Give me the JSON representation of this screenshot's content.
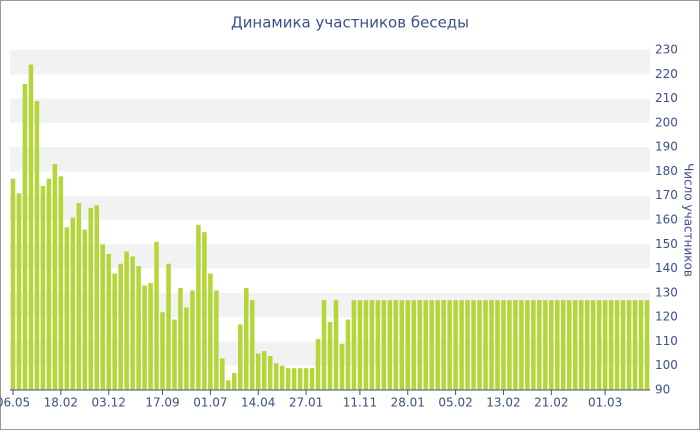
{
  "chart_data": {
    "type": "bar",
    "title": "Динамика участников беседы",
    "y_label": "Число участников",
    "categories": [
      "06.05",
      null,
      null,
      null,
      null,
      null,
      null,
      null,
      "18.02",
      null,
      null,
      null,
      null,
      null,
      null,
      null,
      "03.12",
      null,
      null,
      null,
      null,
      null,
      null,
      null,
      null,
      "17.09",
      null,
      null,
      null,
      null,
      null,
      null,
      null,
      "01.07",
      null,
      null,
      null,
      null,
      null,
      null,
      null,
      "14.04",
      null,
      null,
      null,
      null,
      null,
      null,
      null,
      "27.01",
      null,
      null,
      null,
      null,
      null,
      null,
      null,
      null,
      "11.11",
      null,
      null,
      null,
      null,
      null,
      null,
      null,
      "28.01",
      null,
      null,
      null,
      null,
      null,
      null,
      null,
      "05.02",
      null,
      null,
      null,
      null,
      null,
      null,
      null,
      "13.02",
      null,
      null,
      null,
      null,
      null,
      null,
      null,
      "21.02",
      null,
      null,
      null,
      null,
      null,
      null,
      null,
      null,
      "01.03",
      null,
      null,
      null,
      null,
      null,
      null,
      null
    ],
    "values": [
      177,
      171,
      216,
      224,
      209,
      174,
      177,
      183,
      178,
      157,
      161,
      167,
      156,
      165,
      166,
      150,
      146,
      138,
      142,
      147,
      145,
      141,
      133,
      134,
      151,
      122,
      142,
      119,
      132,
      124,
      131,
      158,
      155,
      138,
      131,
      103,
      94,
      97,
      117,
      132,
      127,
      105,
      106,
      104,
      101,
      100,
      99,
      99,
      99,
      99,
      99,
      111,
      127,
      118,
      127,
      109,
      119,
      127,
      127,
      127,
      127,
      127,
      127,
      127,
      127,
      127,
      127,
      127,
      127,
      127,
      127,
      127,
      127,
      127,
      127,
      127,
      127,
      127,
      127,
      127,
      127,
      127,
      127,
      127,
      127,
      127,
      127,
      127,
      127,
      127,
      127,
      127,
      127,
      127,
      127,
      127,
      127,
      127,
      127,
      127,
      127,
      127,
      127,
      127,
      127,
      127,
      127
    ],
    "color": "#b5d63a",
    "ylim": [
      90,
      230
    ],
    "yticks": [
      90,
      100,
      110,
      120,
      130,
      140,
      150,
      160,
      170,
      180,
      190,
      200,
      210,
      220,
      230
    ],
    "grid": true
  }
}
